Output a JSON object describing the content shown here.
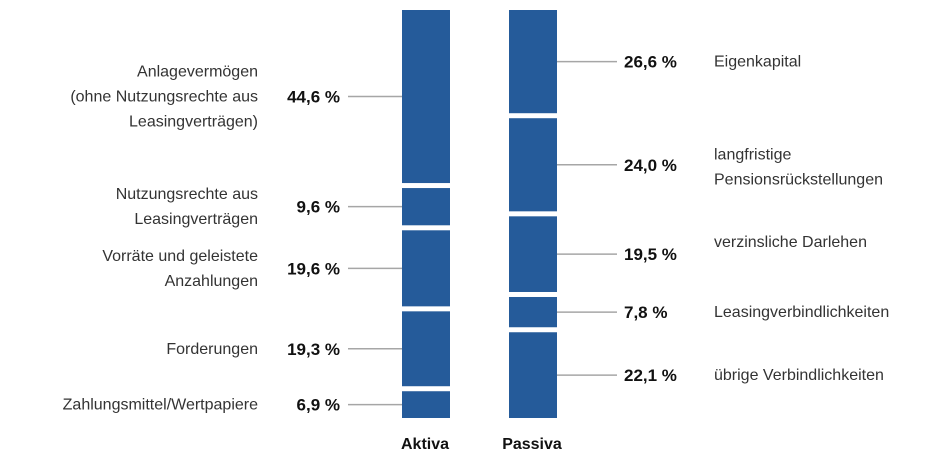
{
  "chart_data": {
    "type": "bar",
    "stacked": true,
    "unit": "%",
    "bar_color": "#255b9a",
    "leader_color": "#a6a6a6",
    "columns": [
      {
        "title": "Aktiva",
        "segments": [
          {
            "lines": [
              "Anlagevermögen",
              "(ohne Nutzungsrechte aus",
              "Leasingverträgen)"
            ],
            "value": 44.6,
            "label": "44,6 %"
          },
          {
            "lines": [
              "Nutzungsrechte aus",
              "Leasingverträgen"
            ],
            "value": 9.6,
            "label": "9,6 %"
          },
          {
            "lines": [
              "Vorräte und geleistete",
              "Anzahlungen"
            ],
            "value": 19.6,
            "label": "19,6 %"
          },
          {
            "lines": [
              "Forderungen"
            ],
            "value": 19.3,
            "label": "19,3 %"
          },
          {
            "lines": [
              "Zahlungsmittel/Wertpapiere"
            ],
            "value": 6.9,
            "label": "6,9 %"
          }
        ]
      },
      {
        "title": "Passiva",
        "segments": [
          {
            "lines": [
              "Eigenkapital"
            ],
            "value": 26.6,
            "label": "26,6 %"
          },
          {
            "lines": [
              "langfristige",
              "Pensionsrückstellungen"
            ],
            "value": 24.0,
            "label": "24,0 %"
          },
          {
            "lines": [
              "verzinsliche Darlehen"
            ],
            "value": 19.5,
            "label": "19,5 %"
          },
          {
            "lines": [
              "Leasingverbindlichkeiten"
            ],
            "value": 7.8,
            "label": "7,8 %"
          },
          {
            "lines": [
              "übrige Verbindlichkeiten"
            ],
            "value": 22.1,
            "label": "22,1 %"
          }
        ]
      }
    ]
  }
}
